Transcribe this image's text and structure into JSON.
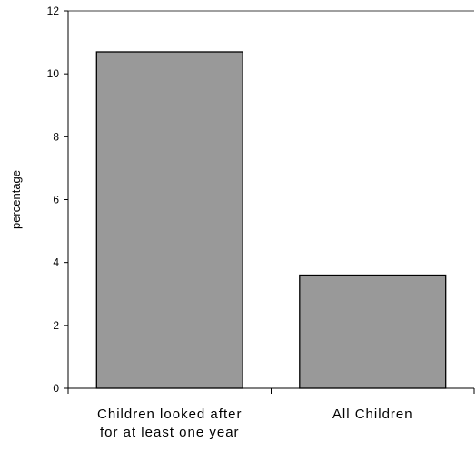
{
  "chart_data": {
    "type": "bar",
    "title": "",
    "xlabel": "",
    "ylabel": "percentage",
    "categories": [
      [
        "Children looked after",
        "for at least one year"
      ],
      [
        "All Children"
      ]
    ],
    "values": [
      10.7,
      3.6
    ],
    "ylim": [
      0,
      12
    ],
    "yticks": [
      0,
      2,
      4,
      6,
      8,
      10,
      12
    ],
    "grid": false,
    "legend": "none",
    "bar_color": "#999999",
    "bar_edge_color": "#000000"
  }
}
